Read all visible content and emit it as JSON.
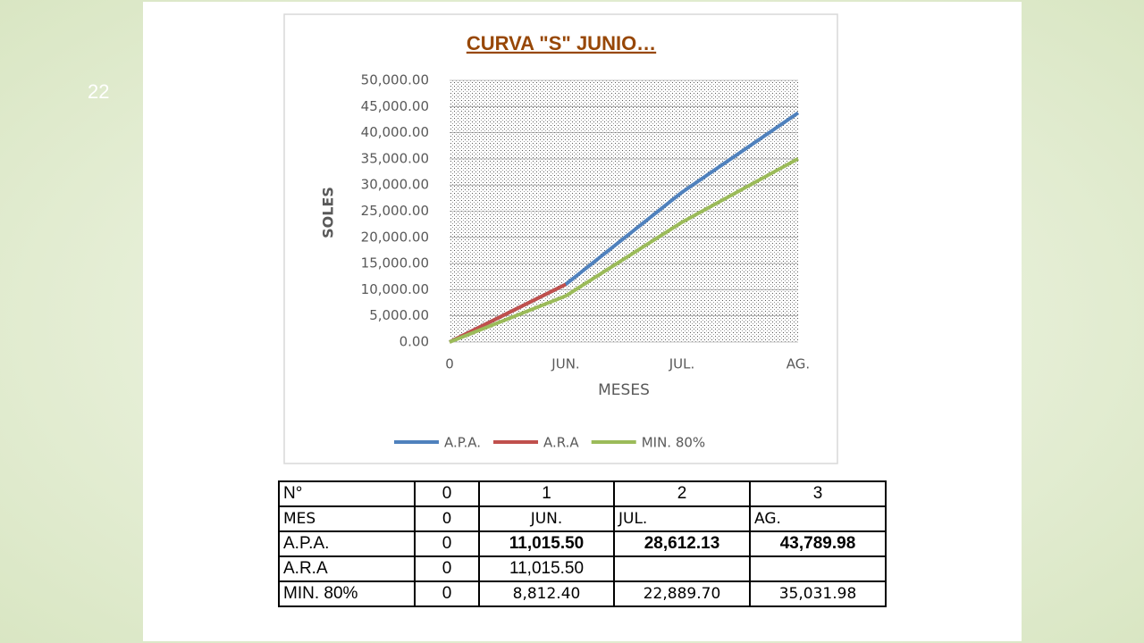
{
  "slide_number": "22",
  "chart_data": {
    "type": "line",
    "title": "CURVA \"S\" JUNIO…",
    "xlabel": "MESES",
    "ylabel": "SOLES",
    "categories": [
      "0",
      "JUN.",
      "JUL.",
      "AG."
    ],
    "series": [
      {
        "name": "A.P.A.",
        "color": "#4f81bd",
        "values": [
          0,
          11015.5,
          28612.13,
          43789.98
        ]
      },
      {
        "name": "A.R.A",
        "color": "#c0504d",
        "values": [
          0,
          11015.5,
          null,
          null
        ]
      },
      {
        "name": "MIN. 80%",
        "color": "#9bbb59",
        "values": [
          0,
          8812.4,
          22889.7,
          35031.98
        ]
      }
    ],
    "ylim": [
      0,
      50000
    ],
    "yticks": [
      {
        "value": 0,
        "label": "0.00"
      },
      {
        "value": 5000,
        "label": "5,000.00"
      },
      {
        "value": 10000,
        "label": "10,000.00"
      },
      {
        "value": 15000,
        "label": "15,000.00"
      },
      {
        "value": 20000,
        "label": "20,000.00"
      },
      {
        "value": 25000,
        "label": "25,000.00"
      },
      {
        "value": 30000,
        "label": "30,000.00"
      },
      {
        "value": 35000,
        "label": "35,000.00"
      },
      {
        "value": 40000,
        "label": "40,000.00"
      },
      {
        "value": 45000,
        "label": "45,000.00"
      },
      {
        "value": 50000,
        "label": "50,000.00"
      }
    ],
    "grid": true,
    "legend": "bottom"
  },
  "table": {
    "rows": [
      [
        "N°",
        "0",
        "1",
        "2",
        "3"
      ],
      [
        "MES",
        "0",
        "JUN.",
        "JUL.",
        "AG."
      ],
      [
        "A.P.A.",
        "0",
        "11,015.50",
        "28,612.13",
        "43,789.98"
      ],
      [
        "A.R.A",
        "0",
        "11,015.50",
        null,
        null
      ],
      [
        "MIN. 80%",
        "0",
        "8,812.40",
        "22,889.70",
        "35,031.98"
      ]
    ]
  }
}
